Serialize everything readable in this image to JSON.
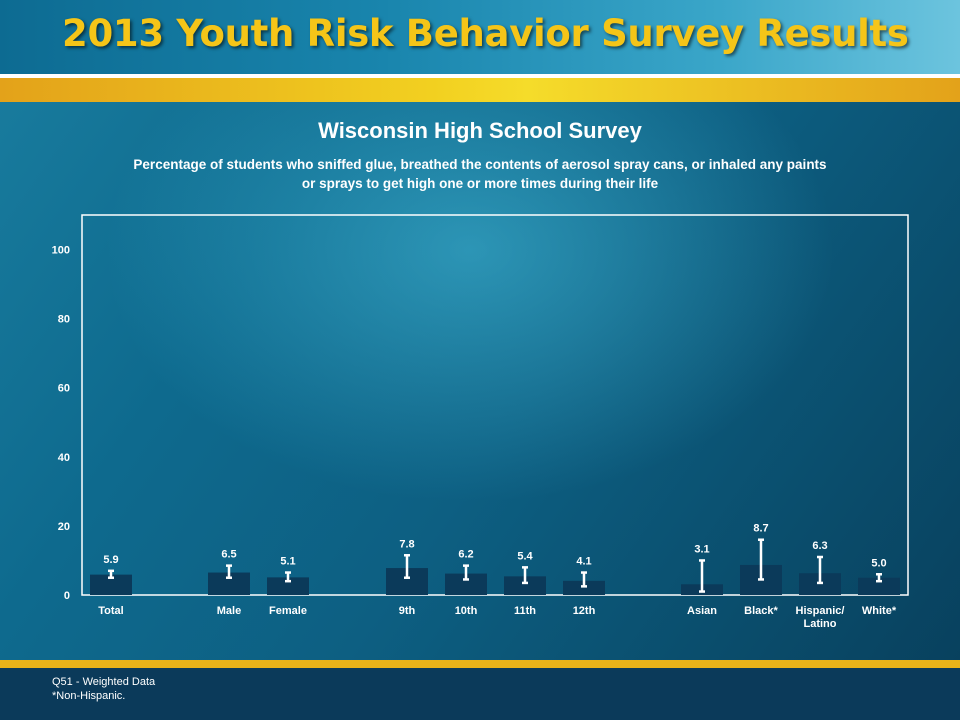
{
  "header": {
    "title": "2013 Youth Risk Behavior Survey Results"
  },
  "footer": {
    "source_note": "Q51 - Weighted Data",
    "footnote": "*Non-Hispanic."
  },
  "colors": {
    "bar": "#0b3a5a",
    "title_gold": "#f5c518",
    "error_bar": "#ffffff"
  },
  "chart_data": {
    "type": "bar",
    "title": "Wisconsin High School Survey",
    "subtitle_lines": [
      "Percentage of students who sniffed glue, breathed the contents of aerosol spray cans, or inhaled any paints",
      "or sprays to get high one or more times during their life"
    ],
    "xlabel": "",
    "ylabel": "",
    "ylim": [
      0,
      110
    ],
    "yticks": [
      0,
      20,
      40,
      60,
      80,
      100
    ],
    "grid": false,
    "categories": [
      {
        "label": [
          "Total"
        ],
        "value": 5.9,
        "value_label": "5.9",
        "ci": [
          5.0,
          7.0
        ]
      },
      {
        "label": [
          "Male"
        ],
        "value": 6.5,
        "value_label": "6.5",
        "ci": [
          5.0,
          8.5
        ]
      },
      {
        "label": [
          "Female"
        ],
        "value": 5.1,
        "value_label": "5.1",
        "ci": [
          4.0,
          6.5
        ]
      },
      {
        "label": [
          "9th"
        ],
        "value": 7.8,
        "value_label": "7.8",
        "ci": [
          5.0,
          11.5
        ]
      },
      {
        "label": [
          "10th"
        ],
        "value": 6.2,
        "value_label": "6.2",
        "ci": [
          4.5,
          8.5
        ]
      },
      {
        "label": [
          "11th"
        ],
        "value": 5.4,
        "value_label": "5.4",
        "ci": [
          3.5,
          8.0
        ]
      },
      {
        "label": [
          "12th"
        ],
        "value": 4.1,
        "value_label": "4.1",
        "ci": [
          2.5,
          6.5
        ]
      },
      {
        "label": [
          "Asian"
        ],
        "value": 3.1,
        "value_label": "3.1",
        "ci": [
          1.0,
          10.0
        ]
      },
      {
        "label": [
          "Black*"
        ],
        "value": 8.7,
        "value_label": "8.7",
        "ci": [
          4.5,
          16.0
        ]
      },
      {
        "label": [
          "Hispanic/",
          "Latino"
        ],
        "value": 6.3,
        "value_label": "6.3",
        "ci": [
          3.5,
          11.0
        ]
      },
      {
        "label": [
          "White*"
        ],
        "value": 5.0,
        "value_label": "5.0",
        "ci": [
          4.0,
          6.0
        ]
      }
    ]
  }
}
